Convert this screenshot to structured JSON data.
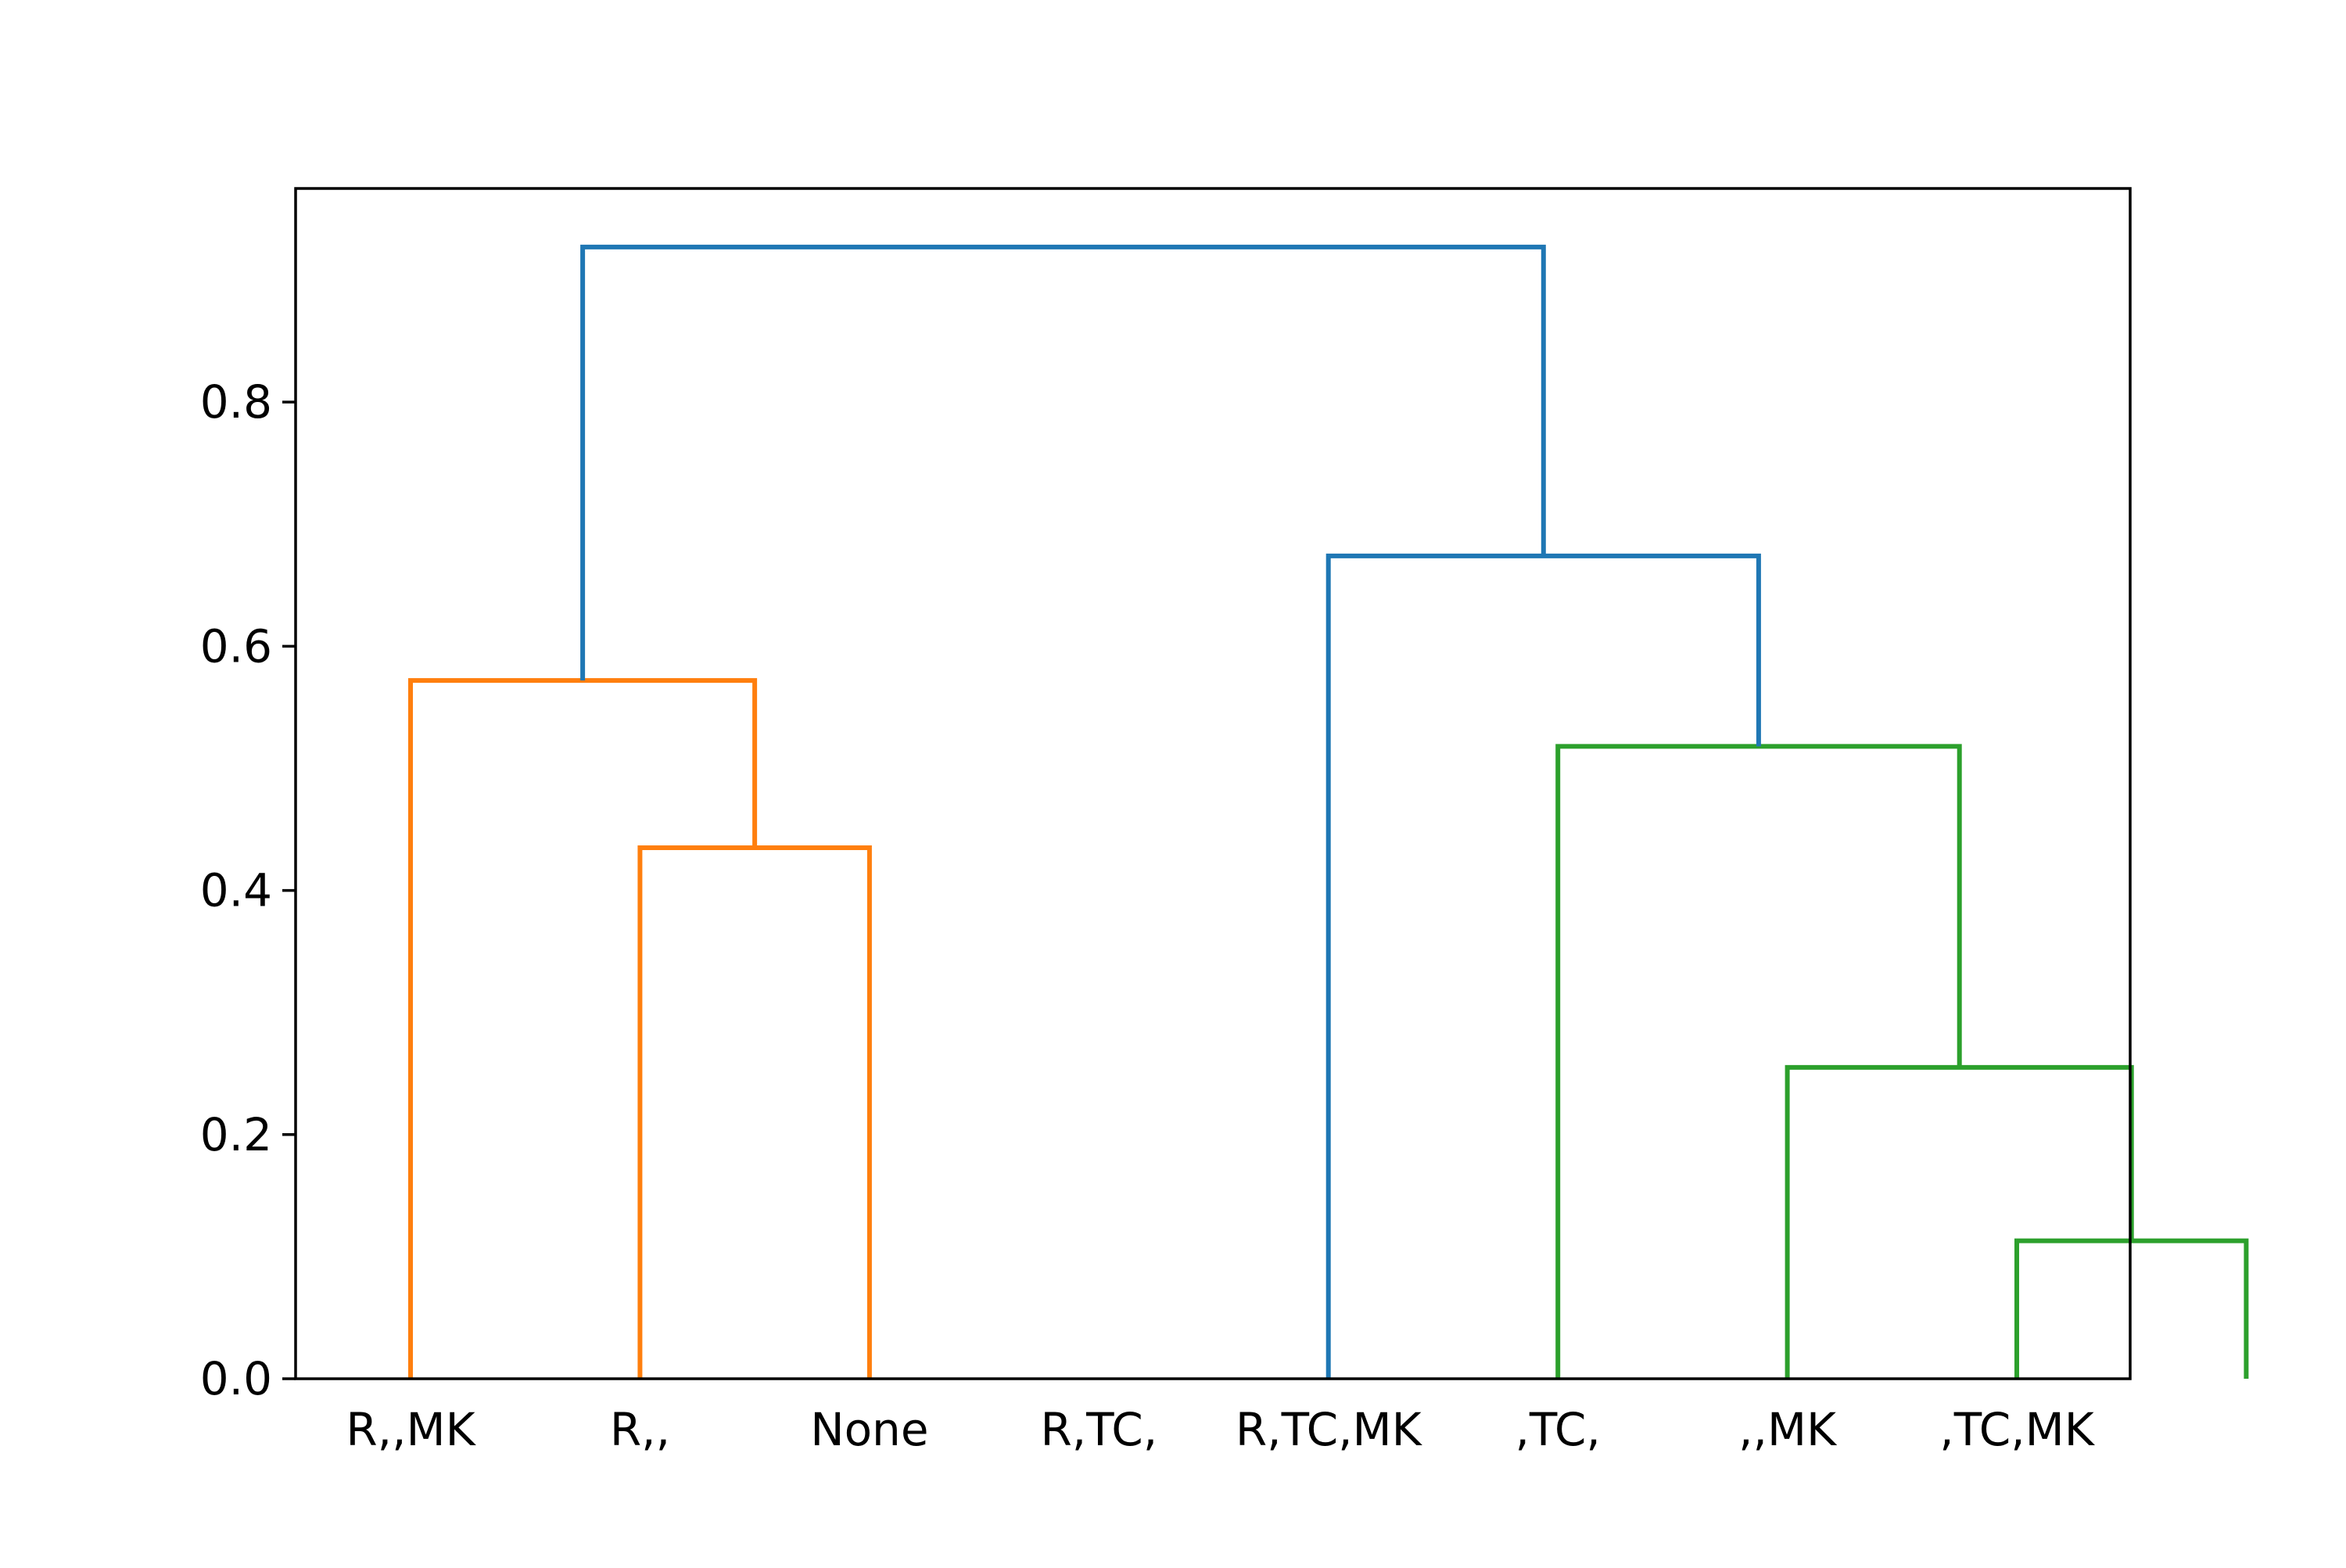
{
  "chart_data": {
    "type": "dendrogram",
    "title": "",
    "xlabel": "",
    "ylabel": "",
    "ylim": [
      0,
      0.975
    ],
    "grid": false,
    "leaves": [
      "R,,MK",
      "R,,",
      "None",
      "R,TC,",
      "R,TC,MK",
      ",TC,",
      ",,MK",
      ",TC,MK"
    ],
    "yticks": [
      "0.0",
      "0.2",
      "0.4",
      "0.6",
      "0.8"
    ],
    "merges": [
      {
        "left": ",,MK",
        "right": ",TC,MK",
        "height": 0.113,
        "color": "#2ca02c"
      },
      {
        "left": ",TC,",
        "right": "{,,MK | ,TC,MK}",
        "height": 0.255,
        "color": "#2ca02c"
      },
      {
        "left": "R,,",
        "right": "None",
        "height": 0.435,
        "color": "#ff7f0e"
      },
      {
        "left": "R,TC,MK",
        "right": "{,TC, | ,,MK | ,TC,MK}",
        "height": 0.518,
        "color": "#2ca02c"
      },
      {
        "left": "R,,MK",
        "right": "{R,, | None}",
        "height": 0.572,
        "color": "#ff7f0e"
      },
      {
        "left": "R,TC,",
        "right": "{R,TC,MK | ,TC, | ,,MK | ,TC,MK}",
        "height": 0.674,
        "color": "#1f77b4"
      },
      {
        "left": "{R,,MK | R,, | None}",
        "right": "{R,TC, | R,TC,MK | ,TC, | ,,MK | ,TC,MK}",
        "height": 0.927,
        "color": "#1f77b4"
      }
    ],
    "links": [
      {
        "x": [
          1,
          1,
          2,
          2
        ],
        "y": [
          0.0,
          0.113,
          0.113,
          0.0
        ],
        "color": "#2ca02c"
      },
      {
        "x": [
          0,
          0,
          1.5,
          1.5
        ],
        "y": [
          0.0,
          0.255,
          0.255,
          0.113
        ],
        "color": "#2ca02c"
      },
      {
        "x": [
          -1,
          -1,
          0.75,
          0.75
        ],
        "y": [
          0.0,
          0.518,
          0.518,
          0.255
        ],
        "color": "#2ca02c"
      },
      {
        "x": [
          -2,
          -2,
          -0.125,
          -0.125
        ],
        "y": [
          0.0,
          0.674,
          0.674,
          0.518
        ],
        "color": "#1f77b4"
      },
      {
        "x": [
          -5,
          -5,
          -4,
          -4
        ],
        "y": [
          0.0,
          0.435,
          0.435,
          0.0
        ],
        "color": "#ff7f0e"
      },
      {
        "x": [
          -6,
          -6,
          -4.5,
          -4.5
        ],
        "y": [
          0.0,
          0.572,
          0.572,
          0.435
        ],
        "color": "#ff7f0e"
      },
      {
        "x": [
          -5.25,
          -5.25,
          -1.0625,
          -1.0625
        ],
        "y": [
          0.572,
          0.927,
          0.927,
          0.674
        ],
        "color": "#1f77b4"
      }
    ]
  }
}
